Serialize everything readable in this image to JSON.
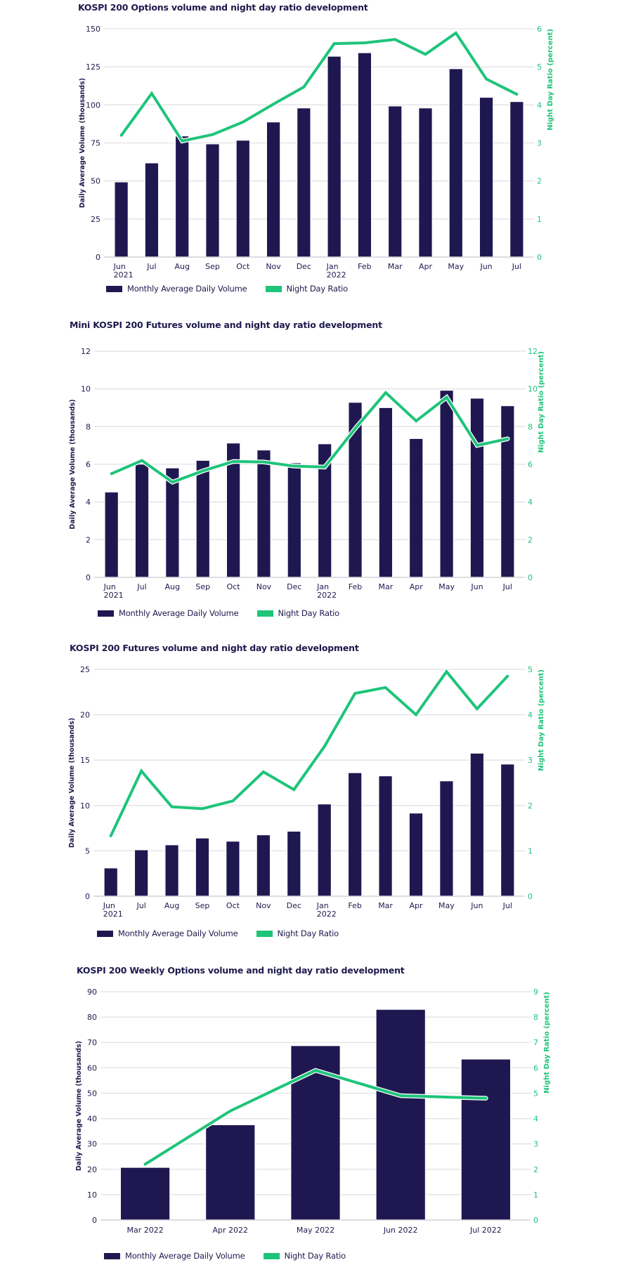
{
  "colors": {
    "bar": "#1f1850",
    "line": "#1ec47a",
    "grid": "#e2e2e6",
    "text": "#1e1a4d",
    "right_axis": "#1ec47a"
  },
  "legend": {
    "bar_label": "Monthly Average Daily Volume",
    "line_label": "Night Day Ratio"
  },
  "chart_data": [
    {
      "type": "bar",
      "combo": "bar+line",
      "title": "KOSPI 200 Options volume and night day ratio development",
      "categories": [
        "Jun 2021",
        "Jul",
        "Aug",
        "Sep",
        "Oct",
        "Nov",
        "Dec",
        "Jan 2022",
        "Feb",
        "Mar",
        "Apr",
        "May",
        "Jun",
        "Jul"
      ],
      "tick_labels": [
        [
          "Jun",
          "2021"
        ],
        [
          "Jul"
        ],
        [
          "Aug"
        ],
        [
          "Sep"
        ],
        [
          "Oct"
        ],
        [
          "Nov"
        ],
        [
          "Dec"
        ],
        [
          "Jan",
          "2022"
        ],
        [
          "Feb"
        ],
        [
          "Mar"
        ],
        [
          "Apr"
        ],
        [
          "May"
        ],
        [
          "Jun"
        ],
        [
          "Jul"
        ]
      ],
      "ylabel": "Daily Average Volume (thousands)",
      "y2label": "Night Day Ratio (percent)",
      "ylim": [
        0,
        150
      ],
      "yticks": [
        0,
        25,
        50,
        75,
        100,
        125,
        150
      ],
      "y2lim": [
        0,
        6
      ],
      "y2ticks": [
        0,
        1,
        2,
        3,
        4,
        5,
        6
      ],
      "grid": true,
      "legend_position": "bottom-left",
      "series": [
        {
          "name": "Monthly Average Daily Volume",
          "type": "bar",
          "axis": "left",
          "values": [
            49.3,
            61.8,
            79.5,
            74.3,
            76.7,
            88.7,
            97.9,
            131.9,
            134.2,
            99.2,
            97.9,
            123.7,
            104.9,
            102.1
          ]
        },
        {
          "name": "Night Day Ratio",
          "type": "line",
          "axis": "right",
          "values": [
            3.2,
            4.3,
            3.05,
            3.22,
            3.55,
            4.02,
            4.47,
            5.61,
            5.63,
            5.72,
            5.33,
            5.89,
            4.68,
            4.28
          ]
        }
      ]
    },
    {
      "type": "bar",
      "combo": "bar+line",
      "title": "Mini KOSPI 200 Futures volume and night day ratio development",
      "categories": [
        "Jun 2021",
        "Jul",
        "Aug",
        "Sep",
        "Oct",
        "Nov",
        "Dec",
        "Jan 2022",
        "Feb",
        "Mar",
        "Apr",
        "May",
        "Jun",
        "Jul"
      ],
      "tick_labels": [
        [
          "Jun",
          "2021"
        ],
        [
          "Jul"
        ],
        [
          "Aug"
        ],
        [
          "Sep"
        ],
        [
          "Oct"
        ],
        [
          "Nov"
        ],
        [
          "Dec"
        ],
        [
          "Jan",
          "2022"
        ],
        [
          "Feb"
        ],
        [
          "Mar"
        ],
        [
          "Apr"
        ],
        [
          "May"
        ],
        [
          "Jun"
        ],
        [
          "Jul"
        ]
      ],
      "ylabel": "Daily Average Volume (thousands)",
      "y2label": "Night Day Ratio (percent)",
      "ylim": [
        0,
        12
      ],
      "yticks": [
        0,
        2,
        4,
        6,
        8,
        10,
        12
      ],
      "y2lim": [
        0,
        12
      ],
      "y2ticks": [
        0,
        2,
        4,
        6,
        8,
        10,
        12
      ],
      "grid": true,
      "legend_position": "bottom-left",
      "series": [
        {
          "name": "Monthly Average Daily Volume",
          "type": "bar",
          "axis": "left",
          "values": [
            4.52,
            6.0,
            5.8,
            6.2,
            7.12,
            6.75,
            6.07,
            7.08,
            9.28,
            9.0,
            7.36,
            9.92,
            9.5,
            9.1
          ]
        },
        {
          "name": "Night Day Ratio",
          "type": "line",
          "axis": "right",
          "values": [
            5.5,
            6.2,
            5.05,
            5.65,
            6.15,
            6.12,
            5.9,
            5.85,
            7.9,
            9.8,
            8.3,
            9.55,
            7.0,
            7.35
          ]
        }
      ]
    },
    {
      "type": "bar",
      "combo": "bar+line",
      "title": "KOSPI 200 Futures volume and night day ratio development",
      "categories": [
        "Jun 2021",
        "Jul",
        "Aug",
        "Sep",
        "Oct",
        "Nov",
        "Dec",
        "Jan 2022",
        "Feb",
        "Mar",
        "Apr",
        "May",
        "Jun",
        "Jul"
      ],
      "tick_labels": [
        [
          "Jun",
          "2021"
        ],
        [
          "Jul"
        ],
        [
          "Aug"
        ],
        [
          "Sep"
        ],
        [
          "Oct"
        ],
        [
          "Nov"
        ],
        [
          "Dec"
        ],
        [
          "Jan",
          "2022"
        ],
        [
          "Feb"
        ],
        [
          "Mar"
        ],
        [
          "Apr"
        ],
        [
          "May"
        ],
        [
          "Jun"
        ],
        [
          "Jul"
        ]
      ],
      "ylabel": "Daily Average Volume (thousands)",
      "y2label": "Night Day Ratio (percent)",
      "ylim": [
        0,
        25
      ],
      "yticks": [
        0,
        5,
        10,
        15,
        20,
        25
      ],
      "y2lim": [
        0,
        5
      ],
      "y2ticks": [
        0,
        1,
        2,
        3,
        4,
        5
      ],
      "grid": true,
      "legend_position": "bottom-left",
      "series": [
        {
          "name": "Monthly Average Daily Volume",
          "type": "bar",
          "axis": "left",
          "values": [
            3.1,
            5.1,
            5.65,
            6.4,
            6.05,
            6.75,
            7.15,
            10.15,
            13.6,
            13.25,
            9.15,
            12.7,
            15.75,
            14.55
          ]
        },
        {
          "name": "Night Day Ratio",
          "type": "line",
          "axis": "right",
          "values": [
            1.33,
            2.76,
            1.97,
            1.93,
            2.1,
            2.74,
            2.35,
            3.3,
            4.47,
            4.6,
            4.0,
            4.95,
            4.13,
            4.85
          ]
        }
      ]
    },
    {
      "type": "bar",
      "combo": "bar+line",
      "title": "KOSPI 200 Weekly Options volume and night day ratio development",
      "categories": [
        "Mar 2022",
        "Apr 2022",
        "May 2022",
        "Jun 2022",
        "Jul 2022"
      ],
      "tick_labels": [
        [
          "Mar 2022"
        ],
        [
          "Apr 2022"
        ],
        [
          "May 2022"
        ],
        [
          "Jun 2022"
        ],
        [
          "Jul 2022"
        ]
      ],
      "ylabel": "Daily Average Volume (thousands)",
      "y2label": "Night Day Ratio (percent)",
      "ylim": [
        0,
        90
      ],
      "yticks": [
        0,
        10,
        20,
        30,
        40,
        50,
        60,
        70,
        80,
        90
      ],
      "y2lim": [
        0,
        9
      ],
      "y2ticks": [
        0,
        1,
        2,
        3,
        4,
        5,
        6,
        7,
        8,
        9
      ],
      "grid": true,
      "legend_position": "bottom-left",
      "series": [
        {
          "name": "Monthly Average Daily Volume",
          "type": "bar",
          "axis": "left",
          "values": [
            20.7,
            37.5,
            68.7,
            83.0,
            63.4
          ]
        },
        {
          "name": "Night Day Ratio",
          "type": "line",
          "axis": "right",
          "values": [
            2.2,
            4.3,
            5.9,
            4.9,
            4.8
          ]
        }
      ]
    }
  ]
}
